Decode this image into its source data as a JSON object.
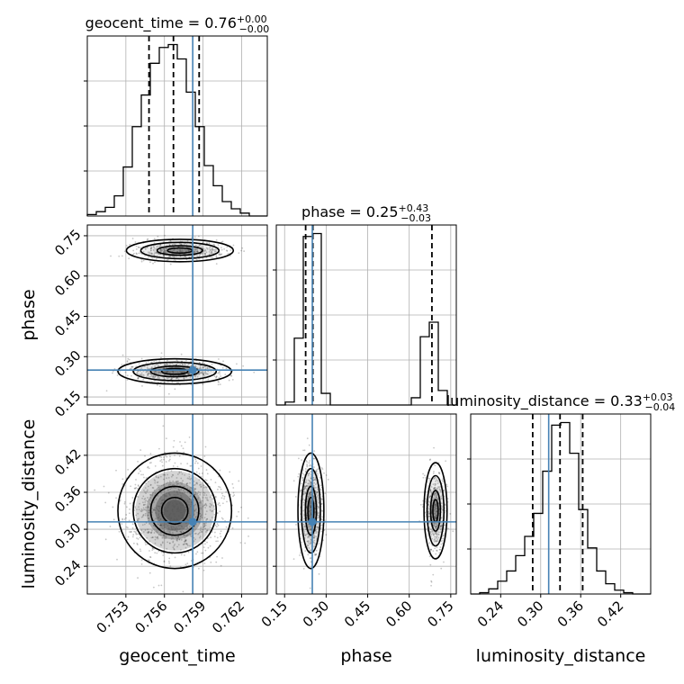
{
  "chart_data": {
    "type": "corner",
    "parameters": [
      "geocent_time",
      "phase",
      "luminosity_distance"
    ],
    "truths": {
      "geocent_time": 0.7582,
      "phase": 0.25,
      "luminosity_distance": 0.312
    },
    "grid": true,
    "panels": [
      {
        "kind": "hist1d",
        "param": "geocent_time",
        "title": {
          "label": "geocent_time",
          "median": "0.76",
          "plus": "+0.00",
          "minus": "−0.00"
        },
        "xlim": [
          0.75,
          0.764
        ],
        "quantiles": [
          0.7548,
          0.7567,
          0.7587
        ],
        "bins": {
          "edges": [
            0.75,
            0.7507,
            0.7514,
            0.7521,
            0.7528,
            0.7535,
            0.7542,
            0.7549,
            0.7556,
            0.7563,
            0.757,
            0.7577,
            0.7584,
            0.7591,
            0.7598,
            0.7605,
            0.7612,
            0.7619,
            0.7626,
            0.7633,
            0.764
          ],
          "counts": [
            1,
            3,
            6,
            14,
            34,
            62,
            84,
            106,
            117,
            119,
            109,
            86,
            62,
            35,
            21,
            10,
            5,
            2,
            0,
            0
          ]
        }
      },
      {
        "kind": "hist1d",
        "param": "phase",
        "title": {
          "label": "phase",
          "median": "0.25",
          "plus": "+0.43",
          "minus": "−0.03"
        },
        "xlim": [
          0.12,
          0.77
        ],
        "quantiles": [
          0.226,
          0.252,
          0.682
        ],
        "bins": {
          "edges": [
            0.12,
            0.1525,
            0.185,
            0.2175,
            0.25,
            0.2825,
            0.315,
            0.3475,
            0.38,
            0.4125,
            0.445,
            0.4775,
            0.51,
            0.5425,
            0.575,
            0.6075,
            0.64,
            0.6725,
            0.705,
            0.7375,
            0.77
          ],
          "counts": [
            0,
            2,
            46,
            116,
            118,
            8,
            0,
            0,
            0,
            0,
            0,
            0,
            0,
            0,
            0,
            5,
            47,
            57,
            10,
            0
          ]
        }
      },
      {
        "kind": "hist1d",
        "param": "luminosity_distance",
        "title": {
          "label": "luminosity_distance",
          "median": "0.33",
          "plus": "+0.03",
          "minus": "−0.04"
        },
        "xlim": [
          0.195,
          0.465
        ],
        "quantiles": [
          0.288,
          0.329,
          0.363
        ],
        "bins": {
          "edges": [
            0.195,
            0.2085,
            0.222,
            0.2355,
            0.249,
            0.2625,
            0.276,
            0.2895,
            0.303,
            0.3165,
            0.33,
            0.3435,
            0.357,
            0.3705,
            0.384,
            0.3975,
            0.411,
            0.4245,
            0.438,
            0.4515,
            0.465
          ],
          "counts": [
            0,
            1,
            4,
            10,
            18,
            30,
            45,
            63,
            96,
            132,
            134,
            110,
            66,
            36,
            18,
            8,
            3,
            1,
            0,
            0
          ]
        }
      },
      {
        "kind": "hist2d",
        "x": "geocent_time",
        "y": "phase",
        "blobs": [
          {
            "x": 0.7568,
            "y": 0.245,
            "sx": 0.0017,
            "sy": 0.018,
            "weight": 0.55
          },
          {
            "x": 0.7572,
            "y": 0.695,
            "sx": 0.0016,
            "sy": 0.016,
            "weight": 0.45
          }
        ]
      },
      {
        "kind": "hist2d",
        "x": "geocent_time",
        "y": "luminosity_distance",
        "blobs": [
          {
            "x": 0.7568,
            "y": 0.33,
            "sx": 0.0017,
            "sy": 0.036,
            "weight": 1.0
          }
        ]
      },
      {
        "kind": "hist2d",
        "x": "phase",
        "y": "luminosity_distance",
        "blobs": [
          {
            "x": 0.245,
            "y": 0.33,
            "sx": 0.018,
            "sy": 0.036,
            "weight": 0.55
          },
          {
            "x": 0.695,
            "y": 0.33,
            "sx": 0.016,
            "sy": 0.03,
            "weight": 0.45
          }
        ]
      }
    ],
    "ticks": {
      "geocent_time": {
        "values": [
          0.753,
          0.756,
          0.759,
          0.762
        ],
        "labels": [
          "0.753",
          "0.756",
          "0.759",
          "0.762"
        ]
      },
      "phase": {
        "values": [
          0.15,
          0.3,
          0.45,
          0.6,
          0.75
        ],
        "labels": [
          "0.15",
          "0.30",
          "0.45",
          "0.60",
          "0.75"
        ]
      },
      "luminosity_distance": {
        "values": [
          0.24,
          0.3,
          0.36,
          0.42
        ],
        "labels": [
          "0.24",
          "0.30",
          "0.36",
          "0.42"
        ]
      }
    },
    "ylims": {
      "phase": [
        0.12,
        0.79
      ],
      "luminosity_distance": [
        0.195,
        0.487
      ]
    },
    "colors": {
      "truth": "#4682b4",
      "hist": "#000000",
      "quantile": "#000000"
    }
  }
}
